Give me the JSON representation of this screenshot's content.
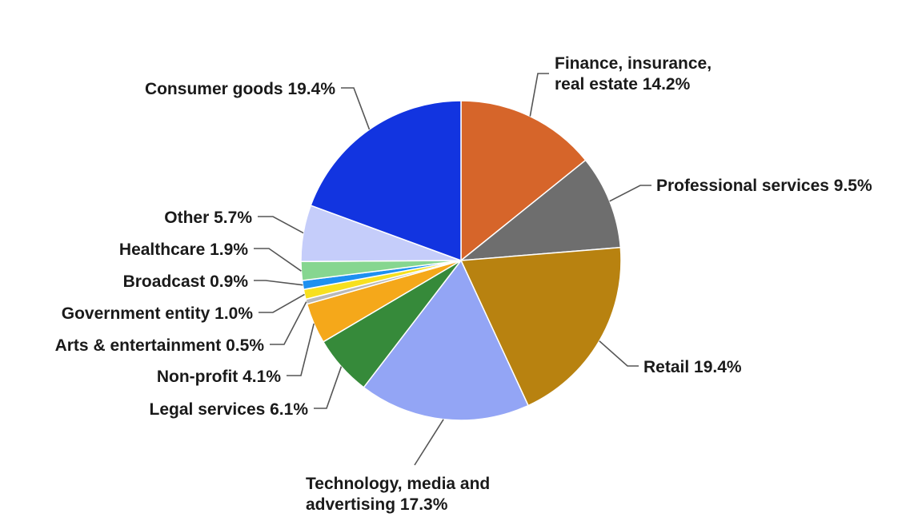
{
  "chart_data": {
    "type": "pie",
    "title": "",
    "start_angle_deg": 0,
    "direction": "clockwise",
    "slices": [
      {
        "name": "Finance, insurance, real estate",
        "value": 14.2,
        "label_lines": [
          "Finance, insurance,",
          "real estate 14.2%"
        ],
        "color": "#d6652a"
      },
      {
        "name": "Professional services",
        "value": 9.5,
        "label_lines": [
          "Professional services 9.5%"
        ],
        "color": "#6e6e6e"
      },
      {
        "name": "Retail",
        "value": 19.4,
        "label_lines": [
          "Retail 19.4%"
        ],
        "color": "#b88210"
      },
      {
        "name": "Technology, media and advertising",
        "value": 17.3,
        "label_lines": [
          "Technology, media and",
          "advertising 17.3%"
        ],
        "color": "#93a5f5"
      },
      {
        "name": "Legal services",
        "value": 6.1,
        "label_lines": [
          "Legal services 6.1%"
        ],
        "color": "#368a3a"
      },
      {
        "name": "Non-profit",
        "value": 4.1,
        "label_lines": [
          "Non-profit 4.1%"
        ],
        "color": "#f5a81a"
      },
      {
        "name": "Arts & entertainment",
        "value": 0.5,
        "label_lines": [
          "Arts & entertainment 0.5%"
        ],
        "color": "#b9b9b9"
      },
      {
        "name": "Government entity",
        "value": 1.0,
        "label_lines": [
          "Government entity 1.0%"
        ],
        "color": "#f7e01f"
      },
      {
        "name": "Broadcast",
        "value": 0.9,
        "label_lines": [
          "Broadcast 0.9%"
        ],
        "color": "#1e90f0"
      },
      {
        "name": "Healthcare",
        "value": 1.9,
        "label_lines": [
          "Healthcare 1.9%"
        ],
        "color": "#86d690"
      },
      {
        "name": "Other",
        "value": 5.7,
        "label_lines": [
          "Other 5.7%"
        ],
        "color": "#c5cdfa"
      },
      {
        "name": "Consumer goods",
        "value": 19.4,
        "label_lines": [
          "Consumer goods 19.4%"
        ],
        "color": "#1234e0"
      }
    ]
  }
}
